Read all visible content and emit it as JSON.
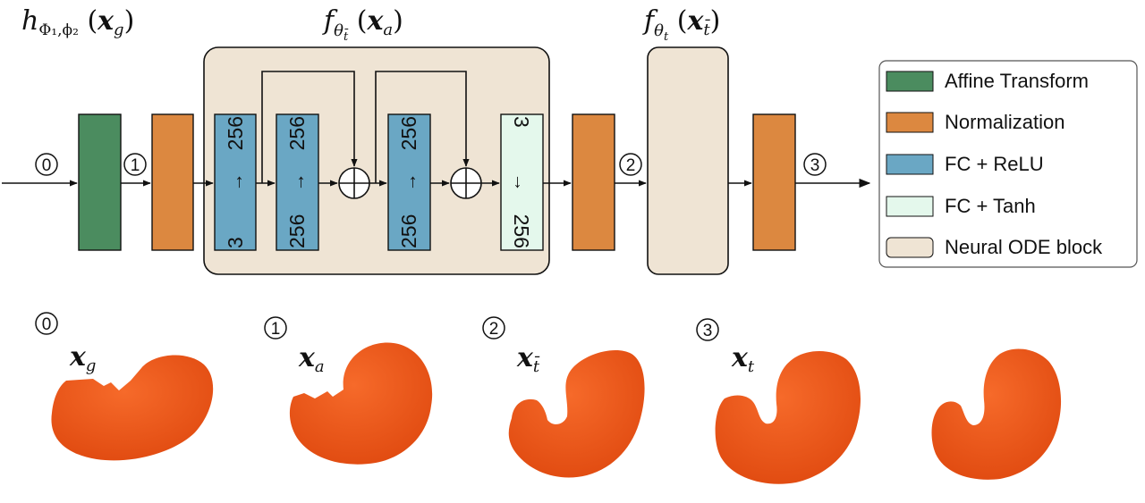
{
  "colors": {
    "affine": "#4b8c5f",
    "normalization": "#dc8840",
    "fc_relu": "#6aa7c4",
    "fc_tanh": "#e4f8ec",
    "ode_block": "#efe4d4",
    "shape": "#f0561b"
  },
  "titles": {
    "h_base": "h",
    "h_sub": "Φ₁,ϕ₂",
    "h_arg_open": "(",
    "h_arg_var": "x",
    "h_arg_sub": "g",
    "h_arg_close": ")",
    "f1_base": "f",
    "f1_sub": "θ",
    "f1_subsub": "t̄",
    "f1_arg_open": "(",
    "f1_arg_var": "x",
    "f1_arg_sub": "a",
    "f1_arg_close": ")",
    "f2_base": "f",
    "f2_sub": "θ",
    "f2_subsub": "t",
    "f2_arg_open": "(",
    "f2_arg_var": "x",
    "f2_arg_sub": "t̄",
    "f2_arg_close": ")"
  },
  "steps": [
    "0",
    "1",
    "2",
    "3"
  ],
  "fc_layers": [
    {
      "top": "256",
      "arrow": "→",
      "bottom": "3"
    },
    {
      "top": "256",
      "arrow": "→",
      "bottom": "256"
    },
    {
      "top": "256",
      "arrow": "→",
      "bottom": "256"
    },
    {
      "top": "3",
      "arrow": "→",
      "bottom": "256"
    }
  ],
  "legend": {
    "items": [
      {
        "label": "Affine Transform",
        "swatch": "affine"
      },
      {
        "label": "Normalization",
        "swatch": "normalization"
      },
      {
        "label": "FC + ReLU",
        "swatch": "fc_relu"
      },
      {
        "label": "FC + Tanh",
        "swatch": "fc_tanh"
      },
      {
        "label": "Neural ODE block",
        "swatch": "ode_block"
      }
    ]
  },
  "shapes": [
    {
      "step": "0",
      "var": "x",
      "sub": "g"
    },
    {
      "step": "1",
      "var": "x",
      "sub": "a"
    },
    {
      "step": "2",
      "var": "x",
      "sub": "t̄"
    },
    {
      "step": "3",
      "var": "x",
      "sub": "t"
    }
  ]
}
